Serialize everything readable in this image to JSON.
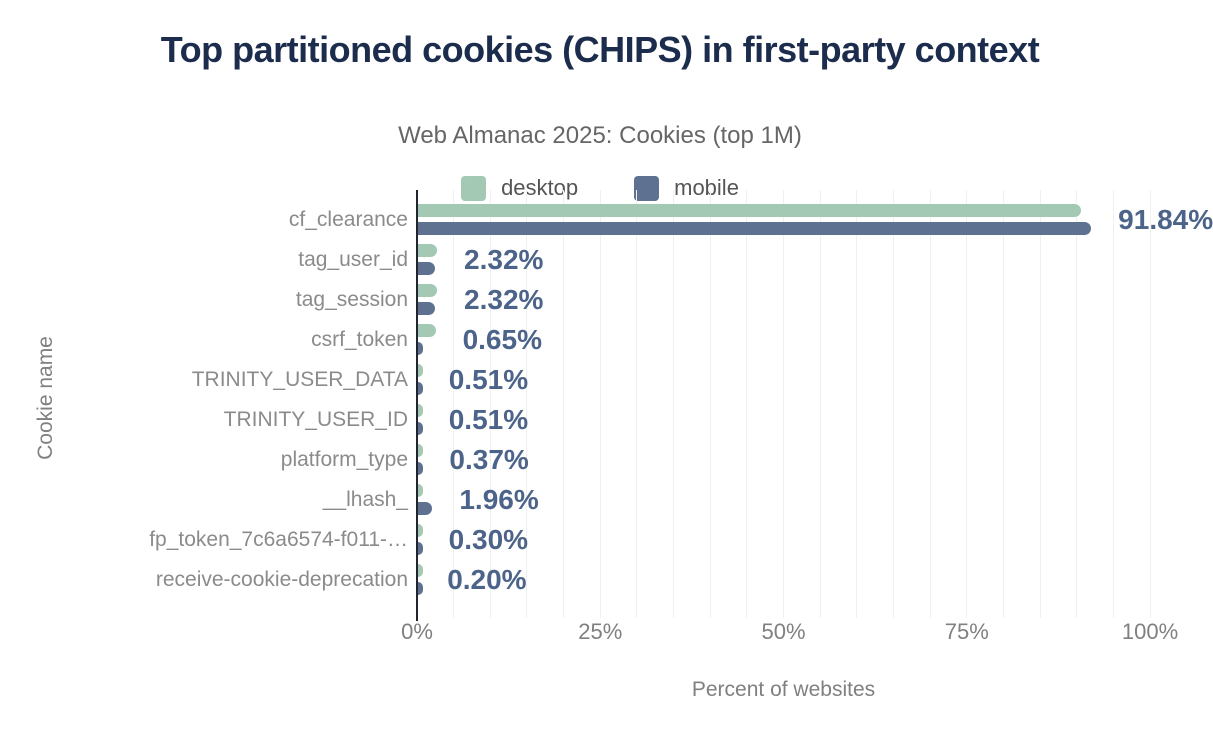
{
  "chart_data": {
    "type": "bar",
    "orientation": "horizontal",
    "title": "Top partitioned cookies (CHIPS) in first-party context",
    "subtitle": "Web Almanac 2025: Cookies (top 1M)",
    "xlabel": "Percent of websites",
    "ylabel": "Cookie name",
    "xlim": [
      0,
      100
    ],
    "x_ticks": [
      {
        "value": 0,
        "label": "0%"
      },
      {
        "value": 25,
        "label": "25%"
      },
      {
        "value": 50,
        "label": "50%"
      },
      {
        "value": 75,
        "label": "75%"
      },
      {
        "value": 100,
        "label": "100%"
      }
    ],
    "grid": {
      "minor_step_percent": 5,
      "color": "#f0f0f1"
    },
    "legend": {
      "position": "top",
      "entries": [
        {
          "name": "desktop",
          "color": "#a3c9b5"
        },
        {
          "name": "mobile",
          "color": "#5f7191"
        }
      ]
    },
    "categories": [
      "cf_clearance",
      "tag_user_id",
      "tag_session",
      "csrf_token",
      "TRINITY_USER_DATA",
      "TRINITY_USER_ID",
      "platform_type",
      "__lhash_",
      "fp_token_7c6a6574-f011-…",
      "receive-cookie-deprecation"
    ],
    "series": [
      {
        "name": "desktop",
        "color": "#a3c9b5",
        "values": [
          90.4,
          2.6,
          2.6,
          2.4,
          0.5,
          0.5,
          0.6,
          0.3,
          0.5,
          0.3
        ]
      },
      {
        "name": "mobile",
        "color": "#5f7191",
        "values": [
          91.84,
          2.32,
          2.32,
          0.65,
          0.51,
          0.51,
          0.37,
          1.96,
          0.3,
          0.2
        ]
      }
    ],
    "value_labels": [
      "91.84%",
      "2.32%",
      "2.32%",
      "0.65%",
      "0.51%",
      "0.51%",
      "0.37%",
      "1.96%",
      "0.30%",
      "0.20%"
    ],
    "value_labels_series": "mobile",
    "colors": {
      "title": "#1c2c4c",
      "subtitle": "#666666",
      "axis_line": "#21262e",
      "muted_text": "#808080",
      "category_text": "#8b8b8b",
      "value_label_text": "#4c6489"
    }
  }
}
